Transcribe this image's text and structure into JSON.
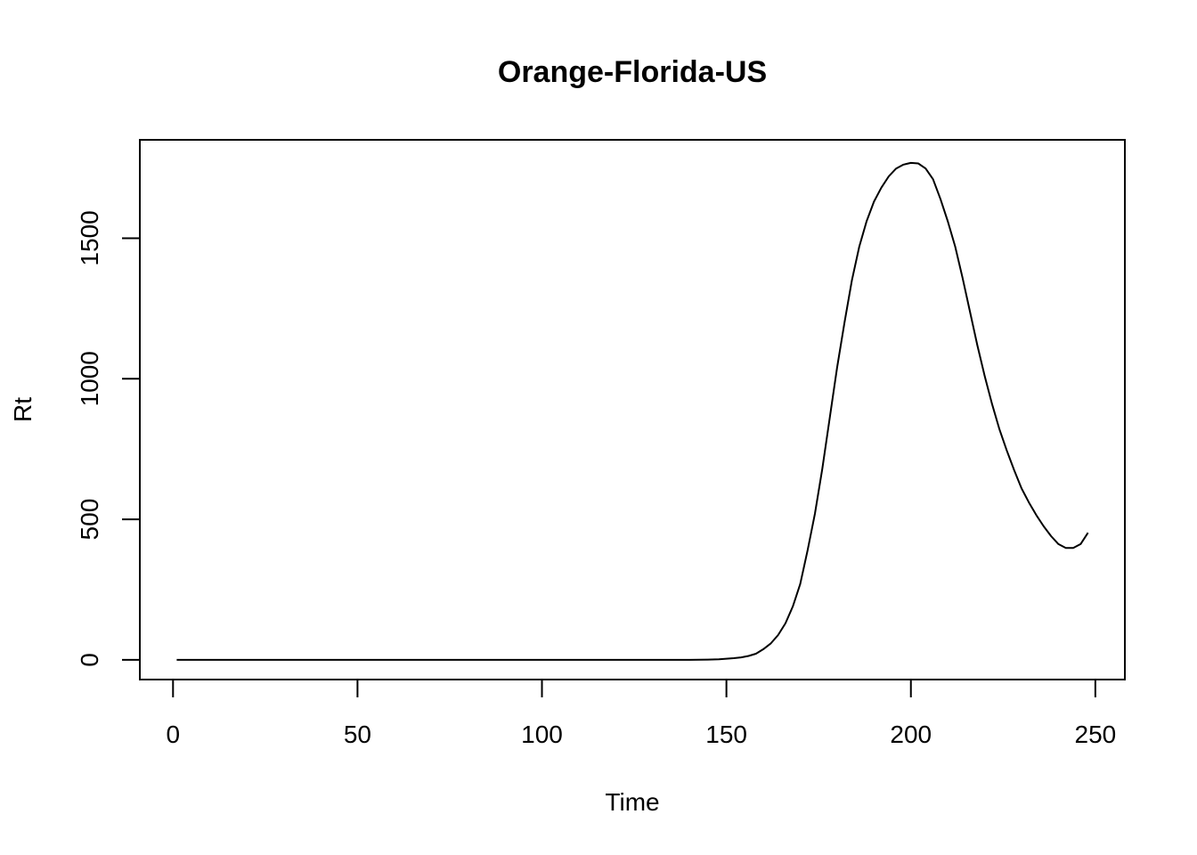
{
  "chart_data": {
    "type": "line",
    "title": "Orange-Florida-US",
    "xlabel": "Time",
    "ylabel": "Rt",
    "xlim": [
      -9,
      258
    ],
    "ylim": [
      -70,
      1850
    ],
    "x_ticks": [
      0,
      50,
      100,
      150,
      200,
      250
    ],
    "y_ticks": [
      0,
      500,
      1000,
      1500
    ],
    "grid": false,
    "legend": "none",
    "series": [
      {
        "color": "#000000",
        "points": [
          [
            1,
            0
          ],
          [
            50,
            0
          ],
          [
            100,
            0
          ],
          [
            140,
            0
          ],
          [
            145,
            1
          ],
          [
            148,
            2
          ],
          [
            150,
            4
          ],
          [
            152,
            6
          ],
          [
            154,
            9
          ],
          [
            156,
            14
          ],
          [
            158,
            22
          ],
          [
            160,
            38
          ],
          [
            162,
            58
          ],
          [
            164,
            88
          ],
          [
            166,
            130
          ],
          [
            168,
            190
          ],
          [
            170,
            270
          ],
          [
            172,
            390
          ],
          [
            174,
            520
          ],
          [
            176,
            680
          ],
          [
            178,
            860
          ],
          [
            180,
            1040
          ],
          [
            182,
            1200
          ],
          [
            184,
            1350
          ],
          [
            186,
            1470
          ],
          [
            188,
            1560
          ],
          [
            190,
            1630
          ],
          [
            192,
            1680
          ],
          [
            194,
            1720
          ],
          [
            196,
            1748
          ],
          [
            198,
            1762
          ],
          [
            200,
            1768
          ],
          [
            202,
            1766
          ],
          [
            204,
            1748
          ],
          [
            206,
            1710
          ],
          [
            208,
            1640
          ],
          [
            210,
            1560
          ],
          [
            212,
            1470
          ],
          [
            214,
            1360
          ],
          [
            216,
            1240
          ],
          [
            218,
            1120
          ],
          [
            220,
            1010
          ],
          [
            222,
            910
          ],
          [
            224,
            820
          ],
          [
            226,
            745
          ],
          [
            228,
            675
          ],
          [
            230,
            610
          ],
          [
            232,
            560
          ],
          [
            234,
            515
          ],
          [
            236,
            475
          ],
          [
            238,
            440
          ],
          [
            240,
            412
          ],
          [
            242,
            398
          ],
          [
            244,
            398
          ],
          [
            246,
            412
          ],
          [
            248,
            452
          ]
        ]
      }
    ]
  }
}
